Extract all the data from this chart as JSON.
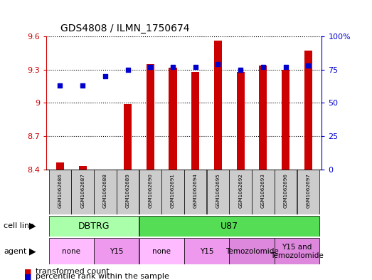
{
  "title": "GDS4808 / ILMN_1750674",
  "samples": [
    "GSM1062686",
    "GSM1062687",
    "GSM1062688",
    "GSM1062689",
    "GSM1062690",
    "GSM1062691",
    "GSM1062694",
    "GSM1062695",
    "GSM1062692",
    "GSM1062693",
    "GSM1062696",
    "GSM1062697"
  ],
  "transformed_counts": [
    8.46,
    8.43,
    8.4,
    8.99,
    9.35,
    9.32,
    9.28,
    9.56,
    9.28,
    9.34,
    9.3,
    9.47
  ],
  "percentile_ranks": [
    63,
    63,
    70,
    75,
    77,
    77,
    77,
    79,
    75,
    77,
    77,
    78
  ],
  "ylim_left": [
    8.4,
    9.6
  ],
  "ylim_right": [
    0,
    100
  ],
  "yticks_left": [
    8.4,
    8.7,
    9.0,
    9.3,
    9.6
  ],
  "yticks_right": [
    0,
    25,
    50,
    75,
    100
  ],
  "ytick_labels_left": [
    "8.4",
    "8.7",
    "9",
    "9.3",
    "9.6"
  ],
  "ytick_labels_right": [
    "0",
    "25",
    "50",
    "75",
    "100%"
  ],
  "bar_color": "#cc0000",
  "dot_color": "#0000cc",
  "cell_line_groups": [
    {
      "label": "DBTRG",
      "start": 0,
      "end": 3,
      "color": "#aaffaa"
    },
    {
      "label": "U87",
      "start": 4,
      "end": 11,
      "color": "#55dd55"
    }
  ],
  "agent_groups": [
    {
      "label": "none",
      "start": 0,
      "end": 1,
      "color": "#ffbbff"
    },
    {
      "label": "Y15",
      "start": 2,
      "end": 3,
      "color": "#ee99ee"
    },
    {
      "label": "none",
      "start": 4,
      "end": 5,
      "color": "#ffbbff"
    },
    {
      "label": "Y15",
      "start": 6,
      "end": 7,
      "color": "#ee99ee"
    },
    {
      "label": "Temozolomide",
      "start": 8,
      "end": 9,
      "color": "#dd88dd"
    },
    {
      "label": "Y15 and\nTemozolomide",
      "start": 10,
      "end": 11,
      "color": "#dd88dd"
    }
  ],
  "legend_bar_label": "transformed count",
  "legend_dot_label": "percentile rank within the sample",
  "background_color": "#ffffff",
  "axis_color": "#cc0000",
  "right_axis_color": "#0000cc",
  "sample_box_color": "#cccccc",
  "bar_width": 0.35
}
